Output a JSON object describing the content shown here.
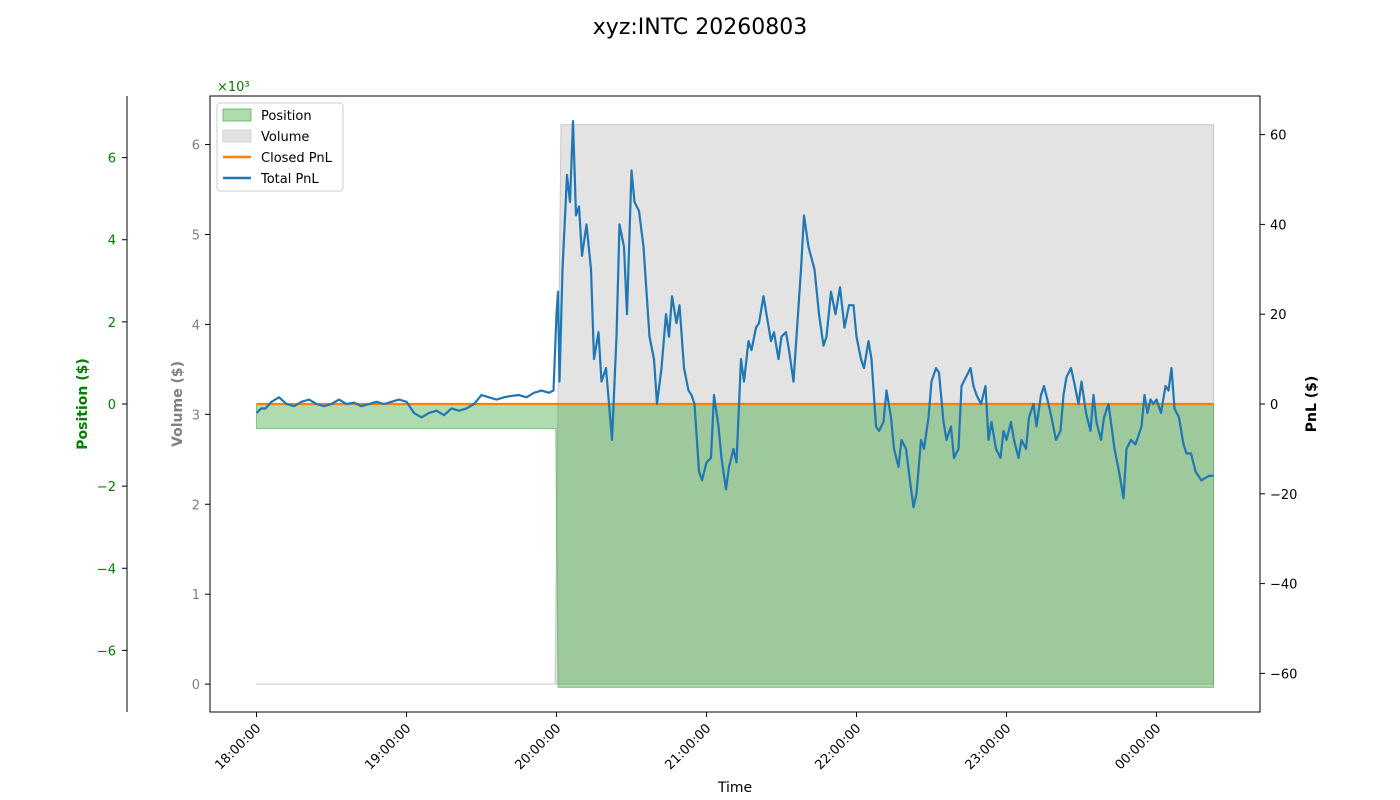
{
  "chart_data": {
    "type": "area",
    "title": "xyz:INTC 20260803",
    "xlabel": "Time",
    "x_ticks": [
      "18:00:00",
      "19:00:00",
      "20:00:00",
      "21:00:00",
      "22:00:00",
      "23:00:00",
      "00:00:00"
    ],
    "x_range_hours": [
      17.69,
      24.69
    ],
    "axes": {
      "position": {
        "label": "Position ($)",
        "color": "#008000",
        "multiplier": "×10³",
        "ticks": [
          6,
          4,
          2,
          0,
          -2,
          -4,
          -6
        ],
        "tick_labels": [
          "6",
          "4",
          "2",
          "0",
          "−2",
          "−4",
          "−6"
        ],
        "ylim": [
          -7.5,
          7.5
        ]
      },
      "volume": {
        "label": "Volume ($)",
        "color": "#808080",
        "ticks": [
          6,
          5,
          4,
          3,
          2,
          1,
          0
        ],
        "tick_labels": [
          "6",
          "5",
          "4",
          "3",
          "2",
          "1",
          "0"
        ],
        "ylim": [
          -0.31,
          6.54
        ]
      },
      "pnl": {
        "label": "PnL ($)",
        "color": "#000000",
        "ticks": [
          60,
          40,
          20,
          0,
          -20,
          -40,
          -60
        ],
        "tick_labels": [
          "60",
          "40",
          "20",
          "0",
          "−20",
          "−40",
          "−60"
        ],
        "ylim": [
          -68.6,
          68.6
        ]
      }
    },
    "legend": {
      "placement": "top-left",
      "entries": [
        {
          "label": "Position",
          "kind": "patch",
          "color": "#2ca02c"
        },
        {
          "label": "Volume",
          "kind": "patch",
          "color": "#c8c8c8"
        },
        {
          "label": "Closed PnL",
          "kind": "line",
          "color": "#ff7f0e"
        },
        {
          "label": "Total PnL",
          "kind": "line",
          "color": "#1f77b4"
        }
      ]
    },
    "position_series": {
      "name": "Position",
      "color": "#2ca02c",
      "units": "thousands of $",
      "points": [
        [
          18.0,
          -0.6
        ],
        [
          19.995,
          -0.6
        ],
        [
          20.01,
          -6.9
        ],
        [
          24.38,
          -6.9
        ]
      ]
    },
    "volume_series": {
      "name": "Volume",
      "color": "#d0d0d0",
      "units": "thousands of $",
      "points": [
        [
          18.0,
          0.0
        ],
        [
          19.99,
          0.0
        ],
        [
          20.03,
          6.22
        ],
        [
          24.38,
          6.22
        ]
      ]
    },
    "closed_pnl_series": {
      "name": "Closed PnL",
      "color": "#ff7f0e",
      "points": [
        [
          18.0,
          0.0
        ],
        [
          24.38,
          0.0
        ]
      ]
    },
    "total_pnl_series": {
      "name": "Total PnL",
      "color": "#1f77b4",
      "points": [
        [
          18.0,
          -2
        ],
        [
          18.03,
          -1
        ],
        [
          18.06,
          -1
        ],
        [
          18.1,
          0.5
        ],
        [
          18.15,
          1.5
        ],
        [
          18.2,
          0
        ],
        [
          18.25,
          -0.5
        ],
        [
          18.3,
          0.5
        ],
        [
          18.35,
          1
        ],
        [
          18.4,
          0
        ],
        [
          18.45,
          -0.5
        ],
        [
          18.5,
          0
        ],
        [
          18.55,
          1
        ],
        [
          18.6,
          0
        ],
        [
          18.65,
          0.3
        ],
        [
          18.7,
          -0.5
        ],
        [
          18.75,
          0
        ],
        [
          18.8,
          0.5
        ],
        [
          18.85,
          0
        ],
        [
          18.9,
          0.5
        ],
        [
          18.95,
          1
        ],
        [
          19.0,
          0.5
        ],
        [
          19.05,
          -2
        ],
        [
          19.1,
          -3
        ],
        [
          19.15,
          -2
        ],
        [
          19.2,
          -1.5
        ],
        [
          19.25,
          -2.5
        ],
        [
          19.3,
          -1
        ],
        [
          19.35,
          -1.5
        ],
        [
          19.4,
          -1
        ],
        [
          19.45,
          0
        ],
        [
          19.5,
          2
        ],
        [
          19.55,
          1.5
        ],
        [
          19.6,
          1
        ],
        [
          19.65,
          1.5
        ],
        [
          19.7,
          1.8
        ],
        [
          19.75,
          2
        ],
        [
          19.8,
          1.5
        ],
        [
          19.85,
          2.5
        ],
        [
          19.9,
          3
        ],
        [
          19.95,
          2.5
        ],
        [
          19.98,
          3
        ],
        [
          20.0,
          20
        ],
        [
          20.01,
          25
        ],
        [
          20.02,
          5
        ],
        [
          20.04,
          30
        ],
        [
          20.07,
          51
        ],
        [
          20.09,
          45
        ],
        [
          20.11,
          63
        ],
        [
          20.13,
          42
        ],
        [
          20.15,
          44
        ],
        [
          20.17,
          33
        ],
        [
          20.2,
          40
        ],
        [
          20.23,
          30
        ],
        [
          20.25,
          10
        ],
        [
          20.28,
          16
        ],
        [
          20.3,
          5
        ],
        [
          20.33,
          8
        ],
        [
          20.37,
          -8
        ],
        [
          20.4,
          15
        ],
        [
          20.42,
          40
        ],
        [
          20.45,
          35
        ],
        [
          20.47,
          20
        ],
        [
          20.5,
          52
        ],
        [
          20.52,
          45
        ],
        [
          20.55,
          43
        ],
        [
          20.58,
          35
        ],
        [
          20.62,
          15
        ],
        [
          20.65,
          10
        ],
        [
          20.67,
          0
        ],
        [
          20.7,
          8
        ],
        [
          20.73,
          20
        ],
        [
          20.75,
          15
        ],
        [
          20.77,
          24
        ],
        [
          20.8,
          18
        ],
        [
          20.82,
          22
        ],
        [
          20.85,
          8
        ],
        [
          20.88,
          3
        ],
        [
          20.9,
          2
        ],
        [
          20.92,
          0
        ],
        [
          20.95,
          -15
        ],
        [
          20.97,
          -17
        ],
        [
          21.0,
          -13
        ],
        [
          21.03,
          -12
        ],
        [
          21.05,
          2
        ],
        [
          21.08,
          -5
        ],
        [
          21.1,
          -12
        ],
        [
          21.13,
          -19
        ],
        [
          21.15,
          -14
        ],
        [
          21.18,
          -10
        ],
        [
          21.2,
          -13
        ],
        [
          21.23,
          10
        ],
        [
          21.25,
          5
        ],
        [
          21.28,
          14
        ],
        [
          21.3,
          12
        ],
        [
          21.33,
          17
        ],
        [
          21.35,
          18
        ],
        [
          21.38,
          24
        ],
        [
          21.4,
          20
        ],
        [
          21.43,
          14
        ],
        [
          21.45,
          16
        ],
        [
          21.48,
          10
        ],
        [
          21.5,
          15
        ],
        [
          21.53,
          16
        ],
        [
          21.55,
          12
        ],
        [
          21.58,
          5
        ],
        [
          21.6,
          15
        ],
        [
          21.63,
          30
        ],
        [
          21.65,
          42
        ],
        [
          21.68,
          35
        ],
        [
          21.72,
          30
        ],
        [
          21.75,
          20
        ],
        [
          21.78,
          13
        ],
        [
          21.8,
          15
        ],
        [
          21.83,
          25
        ],
        [
          21.86,
          20
        ],
        [
          21.89,
          26
        ],
        [
          21.92,
          17
        ],
        [
          21.95,
          22
        ],
        [
          21.98,
          22
        ],
        [
          22.0,
          15
        ],
        [
          22.03,
          10
        ],
        [
          22.05,
          8
        ],
        [
          22.08,
          14
        ],
        [
          22.1,
          10
        ],
        [
          22.13,
          -5
        ],
        [
          22.15,
          -6
        ],
        [
          22.18,
          -4
        ],
        [
          22.2,
          3
        ],
        [
          22.23,
          -3
        ],
        [
          22.25,
          -10
        ],
        [
          22.28,
          -14
        ],
        [
          22.3,
          -8
        ],
        [
          22.33,
          -10
        ],
        [
          22.36,
          -18
        ],
        [
          22.38,
          -23
        ],
        [
          22.4,
          -20
        ],
        [
          22.43,
          -8
        ],
        [
          22.45,
          -10
        ],
        [
          22.48,
          -3
        ],
        [
          22.5,
          5
        ],
        [
          22.53,
          8
        ],
        [
          22.55,
          7
        ],
        [
          22.58,
          -4
        ],
        [
          22.6,
          -8
        ],
        [
          22.63,
          -5
        ],
        [
          22.65,
          -12
        ],
        [
          22.68,
          -10
        ],
        [
          22.7,
          4
        ],
        [
          22.73,
          6
        ],
        [
          22.76,
          8
        ],
        [
          22.78,
          4
        ],
        [
          22.8,
          2
        ],
        [
          22.83,
          0
        ],
        [
          22.86,
          4
        ],
        [
          22.88,
          -8
        ],
        [
          22.9,
          -4
        ],
        [
          22.93,
          -10
        ],
        [
          22.96,
          -12
        ],
        [
          22.98,
          -6
        ],
        [
          23.0,
          -8
        ],
        [
          23.03,
          -4
        ],
        [
          23.05,
          -8
        ],
        [
          23.08,
          -12
        ],
        [
          23.1,
          -8
        ],
        [
          23.13,
          -10
        ],
        [
          23.15,
          -3
        ],
        [
          23.18,
          0
        ],
        [
          23.2,
          -5
        ],
        [
          23.23,
          2
        ],
        [
          23.25,
          4
        ],
        [
          23.28,
          0
        ],
        [
          23.3,
          -3
        ],
        [
          23.33,
          -8
        ],
        [
          23.36,
          -6
        ],
        [
          23.38,
          2
        ],
        [
          23.4,
          6
        ],
        [
          23.43,
          8
        ],
        [
          23.45,
          5
        ],
        [
          23.48,
          0
        ],
        [
          23.5,
          5
        ],
        [
          23.53,
          -2
        ],
        [
          23.56,
          -6
        ],
        [
          23.58,
          2
        ],
        [
          23.6,
          -4
        ],
        [
          23.63,
          -8
        ],
        [
          23.65,
          -3
        ],
        [
          23.68,
          0
        ],
        [
          23.7,
          -5
        ],
        [
          23.72,
          -10
        ],
        [
          23.75,
          -15
        ],
        [
          23.78,
          -21
        ],
        [
          23.8,
          -10
        ],
        [
          23.83,
          -8
        ],
        [
          23.86,
          -9
        ],
        [
          23.88,
          -7
        ],
        [
          23.9,
          -5
        ],
        [
          23.92,
          2
        ],
        [
          23.94,
          -2
        ],
        [
          23.96,
          1
        ],
        [
          23.98,
          0
        ],
        [
          24.0,
          1
        ],
        [
          24.03,
          -2
        ],
        [
          24.06,
          4
        ],
        [
          24.08,
          3
        ],
        [
          24.1,
          8
        ],
        [
          24.12,
          -1
        ],
        [
          24.15,
          -3
        ],
        [
          24.18,
          -9
        ],
        [
          24.2,
          -11
        ],
        [
          24.23,
          -11
        ],
        [
          24.26,
          -15
        ],
        [
          24.3,
          -17
        ],
        [
          24.35,
          -16
        ],
        [
          24.38,
          -16
        ]
      ]
    }
  }
}
